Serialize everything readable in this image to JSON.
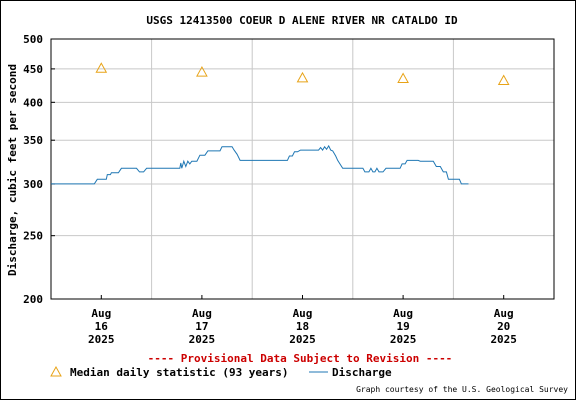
{
  "chart_data": {
    "type": "line",
    "title": "USGS 12413500 COEUR D ALENE RIVER NR CATALDO ID",
    "ylabel": "Discharge, cubic feet per second",
    "xlabel": "",
    "y_scale": "log",
    "ylim": [
      200,
      500
    ],
    "y_ticks": [
      200,
      250,
      300,
      350,
      400,
      450,
      500
    ],
    "x_range_days": [
      15.5,
      20.5
    ],
    "x_ticks": [
      {
        "day": 16,
        "month": "Aug",
        "date": "16",
        "year": "2025"
      },
      {
        "day": 17,
        "month": "Aug",
        "date": "17",
        "year": "2025"
      },
      {
        "day": 18,
        "month": "Aug",
        "date": "18",
        "year": "2025"
      },
      {
        "day": 19,
        "month": "Aug",
        "date": "19",
        "year": "2025"
      },
      {
        "day": 20,
        "month": "Aug",
        "date": "20",
        "year": "2025"
      }
    ],
    "grid": true,
    "series": [
      {
        "name": "Median daily statistic (93 years)",
        "kind": "triangle-marker",
        "color": "#e8a317",
        "points": [
          [
            16.0,
            451
          ],
          [
            17.0,
            445
          ],
          [
            18.0,
            436
          ],
          [
            19.0,
            435
          ],
          [
            20.0,
            432
          ]
        ]
      },
      {
        "name": "Discharge",
        "kind": "line",
        "color": "#1f77b4",
        "points": [
          [
            15.5,
            300
          ],
          [
            15.93,
            300
          ],
          [
            15.96,
            305
          ],
          [
            16.05,
            305
          ],
          [
            16.06,
            310
          ],
          [
            16.09,
            310
          ],
          [
            16.1,
            312
          ],
          [
            16.17,
            312
          ],
          [
            16.2,
            317
          ],
          [
            16.35,
            317
          ],
          [
            16.38,
            313
          ],
          [
            16.42,
            313
          ],
          [
            16.45,
            317
          ],
          [
            16.78,
            317
          ],
          [
            16.79,
            323
          ],
          [
            16.8,
            317
          ],
          [
            16.82,
            325
          ],
          [
            16.84,
            319
          ],
          [
            16.86,
            325
          ],
          [
            16.88,
            322
          ],
          [
            16.9,
            325
          ],
          [
            16.95,
            325
          ],
          [
            16.98,
            332
          ],
          [
            17.03,
            332
          ],
          [
            17.06,
            337
          ],
          [
            17.18,
            337
          ],
          [
            17.2,
            342
          ],
          [
            17.3,
            342
          ],
          [
            17.32,
            338
          ],
          [
            17.35,
            333
          ],
          [
            17.38,
            326
          ],
          [
            17.85,
            326
          ],
          [
            17.87,
            331
          ],
          [
            17.9,
            331
          ],
          [
            17.92,
            336
          ],
          [
            17.95,
            336
          ],
          [
            17.98,
            338
          ],
          [
            18.16,
            338
          ],
          [
            18.18,
            341
          ],
          [
            18.2,
            338
          ],
          [
            18.22,
            342
          ],
          [
            18.24,
            339
          ],
          [
            18.26,
            343
          ],
          [
            18.28,
            338
          ],
          [
            18.3,
            337
          ],
          [
            18.33,
            331
          ],
          [
            18.35,
            326
          ],
          [
            18.4,
            317
          ],
          [
            18.6,
            317
          ],
          [
            18.62,
            313
          ],
          [
            18.66,
            313
          ],
          [
            18.68,
            317
          ],
          [
            18.7,
            313
          ],
          [
            18.72,
            313
          ],
          [
            18.74,
            317
          ],
          [
            18.76,
            313
          ],
          [
            18.8,
            313
          ],
          [
            18.83,
            317
          ],
          [
            18.97,
            317
          ],
          [
            18.99,
            322
          ],
          [
            19.02,
            322
          ],
          [
            19.04,
            326
          ],
          [
            19.15,
            326
          ],
          [
            19.17,
            325
          ],
          [
            19.25,
            325
          ],
          [
            19.3,
            325
          ],
          [
            19.33,
            319
          ],
          [
            19.37,
            319
          ],
          [
            19.4,
            313
          ],
          [
            19.43,
            313
          ],
          [
            19.45,
            305
          ],
          [
            19.56,
            305
          ],
          [
            19.58,
            300
          ],
          [
            19.65,
            300
          ]
        ]
      }
    ],
    "legend_placement": "bottom",
    "provisional_note": "---- Provisional Data Subject to Revision ----",
    "credit": "Graph courtesy of the U.S. Geological Survey",
    "colors": {
      "grid": "#c8c8c8",
      "axis": "#000000",
      "note": "#cc0000"
    }
  }
}
